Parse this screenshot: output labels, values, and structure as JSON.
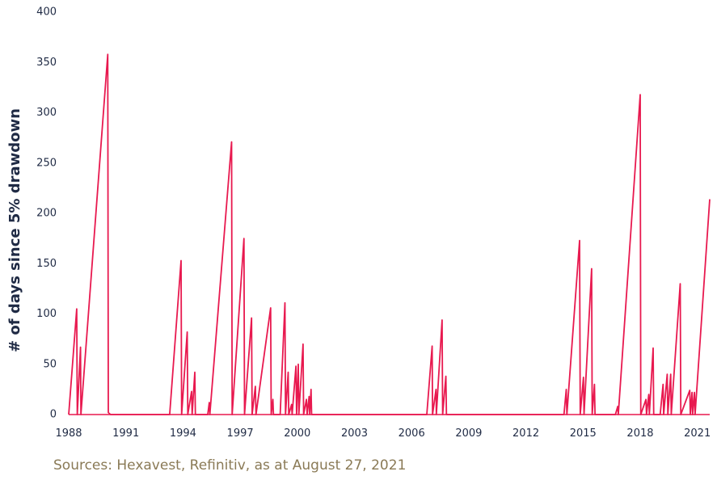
{
  "source_note": "Sources: Hexavest, Refinitiv, as at August 27, 2021",
  "chart_data": {
    "type": "line",
    "title": "",
    "xlabel": "",
    "ylabel": "# of days since 5% drawdown",
    "xlim": [
      1988,
      2021.65
    ],
    "ylim": [
      0,
      400
    ],
    "x_ticks": [
      1988,
      1991,
      1994,
      1997,
      2000,
      2003,
      2006,
      2009,
      2012,
      2015,
      2018,
      2021
    ],
    "x_tick_labels": [
      "1988",
      "1991",
      "1994",
      "1997",
      "2000",
      "2003",
      "2006",
      "2009",
      "2012",
      "2015",
      "2018",
      "2021"
    ],
    "y_ticks": [
      0,
      50,
      100,
      150,
      200,
      250,
      300,
      350,
      400
    ],
    "y_tick_labels": [
      "0",
      "50",
      "100",
      "150",
      "200",
      "250",
      "300",
      "350",
      "400"
    ],
    "grid": false,
    "color": "#e8194f",
    "series": [
      {
        "name": "",
        "points": [
          [
            1988.0,
            0
          ],
          [
            1988.42,
            105
          ],
          [
            1988.45,
            0
          ],
          [
            1988.62,
            67
          ],
          [
            1988.64,
            0
          ],
          [
            1990.05,
            358
          ],
          [
            1990.08,
            2
          ],
          [
            1990.2,
            0
          ],
          [
            1993.3,
            0
          ],
          [
            1993.9,
            153
          ],
          [
            1993.93,
            0
          ],
          [
            1994.22,
            82
          ],
          [
            1994.25,
            0
          ],
          [
            1994.45,
            23
          ],
          [
            1994.48,
            0
          ],
          [
            1994.62,
            42
          ],
          [
            1994.65,
            0
          ],
          [
            1995.3,
            0
          ],
          [
            1995.38,
            12
          ],
          [
            1995.41,
            0
          ],
          [
            1996.55,
            271
          ],
          [
            1996.58,
            0
          ],
          [
            1997.2,
            175
          ],
          [
            1997.23,
            0
          ],
          [
            1997.6,
            96
          ],
          [
            1997.63,
            0
          ],
          [
            1997.8,
            28
          ],
          [
            1997.83,
            0
          ],
          [
            1998.6,
            106
          ],
          [
            1998.63,
            0
          ],
          [
            1998.72,
            15
          ],
          [
            1998.75,
            0
          ],
          [
            1999.1,
            0
          ],
          [
            1999.35,
            111
          ],
          [
            1999.38,
            0
          ],
          [
            1999.52,
            42
          ],
          [
            1999.55,
            0
          ],
          [
            1999.7,
            10
          ],
          [
            1999.73,
            0
          ],
          [
            1999.93,
            48
          ],
          [
            1999.96,
            0
          ],
          [
            2000.05,
            50
          ],
          [
            2000.08,
            0
          ],
          [
            2000.3,
            70
          ],
          [
            2000.33,
            0
          ],
          [
            2000.48,
            15
          ],
          [
            2000.52,
            0
          ],
          [
            2000.62,
            18
          ],
          [
            2000.65,
            0
          ],
          [
            2000.72,
            25
          ],
          [
            2000.75,
            0
          ],
          [
            2006.8,
            0
          ],
          [
            2007.08,
            68
          ],
          [
            2007.1,
            0
          ],
          [
            2007.28,
            25
          ],
          [
            2007.3,
            0
          ],
          [
            2007.6,
            94
          ],
          [
            2007.63,
            0
          ],
          [
            2007.8,
            38
          ],
          [
            2007.83,
            0
          ],
          [
            2014.0,
            0
          ],
          [
            2014.12,
            25
          ],
          [
            2014.15,
            0
          ],
          [
            2014.82,
            173
          ],
          [
            2014.85,
            0
          ],
          [
            2015.02,
            37
          ],
          [
            2015.05,
            0
          ],
          [
            2015.45,
            145
          ],
          [
            2015.48,
            0
          ],
          [
            2015.6,
            30
          ],
          [
            2015.63,
            0
          ],
          [
            2016.7,
            0
          ],
          [
            2016.82,
            8
          ],
          [
            2016.85,
            0
          ],
          [
            2018.0,
            318
          ],
          [
            2018.03,
            0
          ],
          [
            2018.3,
            15
          ],
          [
            2018.33,
            0
          ],
          [
            2018.45,
            20
          ],
          [
            2018.48,
            0
          ],
          [
            2018.68,
            66
          ],
          [
            2018.71,
            0
          ],
          [
            2019.05,
            0
          ],
          [
            2019.2,
            30
          ],
          [
            2019.23,
            0
          ],
          [
            2019.42,
            40
          ],
          [
            2019.45,
            0
          ],
          [
            2019.6,
            40
          ],
          [
            2019.63,
            0
          ],
          [
            2020.1,
            130
          ],
          [
            2020.13,
            0
          ],
          [
            2020.6,
            24
          ],
          [
            2020.63,
            0
          ],
          [
            2020.72,
            22
          ],
          [
            2020.75,
            0
          ],
          [
            2020.85,
            22
          ],
          [
            2020.88,
            0
          ],
          [
            2021.65,
            214
          ]
        ]
      }
    ]
  }
}
